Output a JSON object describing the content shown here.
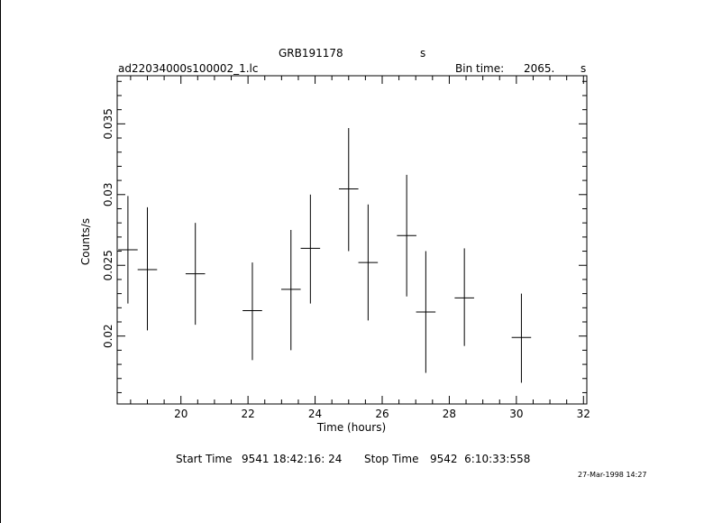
{
  "header": {
    "object": "GRB191178",
    "object_unit": "s",
    "filename": "ad22034000s100002_1.lc",
    "bin_time_label": "Bin time:",
    "bin_time_value": "2065.",
    "bin_time_unit": "s"
  },
  "footer": {
    "start_label": "Start Time",
    "start_value": "9541 18:42:16: 24",
    "stop_label": "Stop Time",
    "stop_value": "9542  6:10:33:558",
    "timestamp": "27-Mar-1998 14:27"
  },
  "chart_data": {
    "type": "scatter",
    "title": "GRB191178",
    "xlabel": "Time (hours)",
    "ylabel": "Counts/s",
    "xlim": [
      18.1,
      32.1
    ],
    "ylim": [
      0.0152,
      0.0384
    ],
    "xticks": [
      20,
      22,
      24,
      26,
      28,
      30,
      32
    ],
    "yticks": [
      0.02,
      0.025,
      0.03,
      0.035
    ],
    "ytick_labels": [
      "0.02",
      "0.025",
      "0.03",
      "0.035"
    ],
    "points": [
      {
        "x": 18.42,
        "y": 0.0261,
        "xerr": 0.29,
        "ylo": 0.0223,
        "yhi": 0.0299
      },
      {
        "x": 19.0,
        "y": 0.0247,
        "xerr": 0.29,
        "ylo": 0.0204,
        "yhi": 0.0291
      },
      {
        "x": 20.43,
        "y": 0.0244,
        "xerr": 0.29,
        "ylo": 0.0208,
        "yhi": 0.028
      },
      {
        "x": 22.13,
        "y": 0.0218,
        "xerr": 0.29,
        "ylo": 0.0183,
        "yhi": 0.0252
      },
      {
        "x": 23.28,
        "y": 0.0233,
        "xerr": 0.29,
        "ylo": 0.019,
        "yhi": 0.0275
      },
      {
        "x": 23.86,
        "y": 0.0262,
        "xerr": 0.29,
        "ylo": 0.0223,
        "yhi": 0.03
      },
      {
        "x": 25.0,
        "y": 0.0304,
        "xerr": 0.29,
        "ylo": 0.026,
        "yhi": 0.0347
      },
      {
        "x": 25.58,
        "y": 0.0252,
        "xerr": 0.29,
        "ylo": 0.0211,
        "yhi": 0.0293
      },
      {
        "x": 26.73,
        "y": 0.0271,
        "xerr": 0.29,
        "ylo": 0.0228,
        "yhi": 0.0314
      },
      {
        "x": 27.3,
        "y": 0.0217,
        "xerr": 0.29,
        "ylo": 0.0174,
        "yhi": 0.026
      },
      {
        "x": 28.45,
        "y": 0.0227,
        "xerr": 0.29,
        "ylo": 0.0193,
        "yhi": 0.0262
      },
      {
        "x": 30.15,
        "y": 0.0199,
        "xerr": 0.29,
        "ylo": 0.0167,
        "yhi": 0.023
      }
    ],
    "grid": false,
    "legend": "none",
    "color": "#000000"
  }
}
